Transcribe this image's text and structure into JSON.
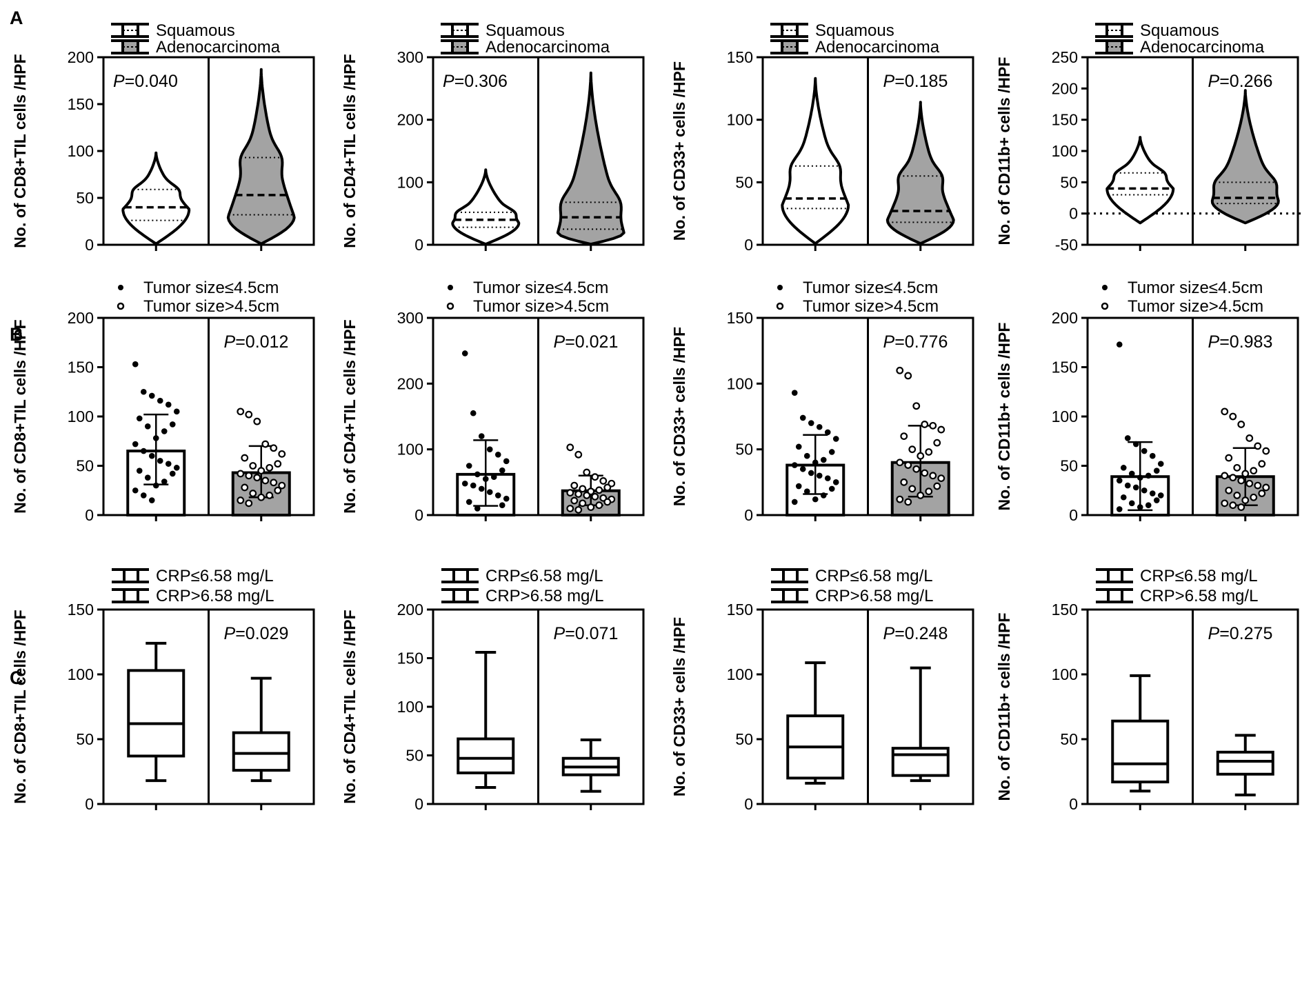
{
  "panels": [
    {
      "letter": "A",
      "chart_data": [
        {
          "type": "violin",
          "ylabel": "No. of CD8+TIL cells /HPF",
          "ylim": [
            0,
            200
          ],
          "yticks": [
            0,
            50,
            100,
            150,
            200
          ],
          "legend": [
            "Squamous",
            "Adenocarcinoma"
          ],
          "p_label": "P",
          "p_value": "=0.040",
          "p_position": "left",
          "groups": [
            {
              "name": "Squamous",
              "min": 1,
              "max": 98,
              "q1": 26,
              "median": 40,
              "q3": 59,
              "mode": 38
            },
            {
              "name": "Adenocarcinoma",
              "min": 1,
              "max": 187,
              "q1": 32,
              "median": 53,
              "q3": 93,
              "mode": 30
            }
          ]
        },
        {
          "type": "violin",
          "ylabel": "No. of CD4+TIL cells /HPF",
          "ylim": [
            0,
            300
          ],
          "yticks": [
            0,
            100,
            200,
            300
          ],
          "legend": [
            "Squamous",
            "Adenocarcinoma"
          ],
          "p_label": "P",
          "p_value": "=0.306",
          "p_position": "left",
          "groups": [
            {
              "name": "Squamous",
              "min": 1,
              "max": 120,
              "q1": 28,
              "median": 40,
              "q3": 52,
              "mode": 35
            },
            {
              "name": "Adenocarcinoma",
              "min": 1,
              "max": 275,
              "q1": 25,
              "median": 44,
              "q3": 68,
              "mode": 20
            }
          ]
        },
        {
          "type": "violin",
          "ylabel": "No. of CD33+ cells /HPF",
          "ylim": [
            0,
            150
          ],
          "yticks": [
            0,
            50,
            100,
            150
          ],
          "legend": [
            "Squamous",
            "Adenocarcinoma"
          ],
          "p_label": "P",
          "p_value": "=0.185",
          "p_position": "right",
          "groups": [
            {
              "name": "Squamous",
              "min": 1,
              "max": 133,
              "q1": 29,
              "median": 37,
              "q3": 63,
              "mode": 32
            },
            {
              "name": "Adenocarcinoma",
              "min": 1,
              "max": 114,
              "q1": 18,
              "median": 27,
              "q3": 55,
              "mode": 20
            }
          ]
        },
        {
          "type": "violin",
          "ylabel": "No. of CD11b+ cells /HPF",
          "ylim": [
            -50,
            250
          ],
          "yticks": [
            -50,
            0,
            50,
            100,
            150,
            200,
            250
          ],
          "legend": [
            "Squamous",
            "Adenocarcinoma"
          ],
          "p_label": "P",
          "p_value": "=0.266",
          "p_position": "right",
          "zero_line": true,
          "groups": [
            {
              "name": "Squamous",
              "min": -15,
              "max": 122,
              "q1": 30,
              "median": 40,
              "q3": 65,
              "mode": 40
            },
            {
              "name": "Adenocarcinoma",
              "min": -15,
              "max": 197,
              "q1": 16,
              "median": 25,
              "q3": 50,
              "mode": 20
            }
          ]
        }
      ]
    },
    {
      "letter": "B",
      "chart_data": [
        {
          "type": "bar_scatter",
          "ylabel": "No. of CD8+TIL cells /HPF",
          "ylim": [
            0,
            200
          ],
          "yticks": [
            0,
            50,
            100,
            150,
            200
          ],
          "legend": [
            "Tumor size≤4.5cm",
            "Tumor size>4.5cm"
          ],
          "p_label": "P",
          "p_value": "=0.012",
          "p_position": "right",
          "groups": [
            {
              "name": "Tumor size≤4.5cm",
              "mean": 65,
              "sd_low": 31,
              "sd_high": 102,
              "points": [
                153,
                125,
                121,
                116,
                112,
                105,
                98,
                92,
                90,
                85,
                78,
                72,
                65,
                60,
                55,
                52,
                48,
                45,
                42,
                38,
                34,
                30,
                25,
                20,
                15
              ]
            },
            {
              "name": "Tumor size>4.5cm",
              "mean": 43,
              "sd_low": 18,
              "sd_high": 70,
              "points": [
                105,
                102,
                95,
                72,
                68,
                62,
                58,
                52,
                50,
                48,
                45,
                42,
                40,
                38,
                35,
                33,
                30,
                28,
                25,
                22,
                20,
                18,
                15,
                12
              ]
            }
          ]
        },
        {
          "type": "bar_scatter",
          "ylabel": "No. of CD4+TIL cells /HPF",
          "ylim": [
            0,
            300
          ],
          "yticks": [
            0,
            100,
            200,
            300
          ],
          "legend": [
            "Tumor size≤4.5cm",
            "Tumor size>4.5cm"
          ],
          "p_label": "P",
          "p_value": "=0.021",
          "p_position": "right",
          "groups": [
            {
              "name": "Tumor size≤4.5cm",
              "mean": 62,
              "sd_low": 14,
              "sd_high": 114,
              "points": [
                246,
                155,
                120,
                100,
                92,
                82,
                75,
                68,
                62,
                58,
                55,
                48,
                45,
                40,
                35,
                30,
                25,
                20,
                15,
                10
              ]
            },
            {
              "name": "Tumor size>4.5cm",
              "mean": 37,
              "sd_low": 15,
              "sd_high": 60,
              "points": [
                103,
                92,
                65,
                58,
                52,
                48,
                45,
                42,
                40,
                38,
                36,
                34,
                32,
                30,
                28,
                26,
                24,
                22,
                20,
                18,
                15,
                12,
                10,
                8
              ]
            }
          ]
        },
        {
          "type": "bar_scatter",
          "ylabel": "No. of CD33+ cells /HPF",
          "ylim": [
            0,
            150
          ],
          "yticks": [
            0,
            50,
            100,
            150
          ],
          "legend": [
            "Tumor size≤4.5cm",
            "Tumor size>4.5cm"
          ],
          "p_label": "P",
          "p_value": "=0.776",
          "p_position": "right",
          "groups": [
            {
              "name": "Tumor size≤4.5cm",
              "mean": 38,
              "sd_low": 16,
              "sd_high": 61,
              "points": [
                93,
                74,
                70,
                67,
                63,
                58,
                52,
                48,
                45,
                42,
                40,
                38,
                35,
                32,
                30,
                28,
                25,
                22,
                20,
                18,
                15,
                12,
                10
              ]
            },
            {
              "name": "Tumor size>4.5cm",
              "mean": 40,
              "sd_low": 14,
              "sd_high": 68,
              "points": [
                110,
                106,
                83,
                69,
                68,
                65,
                60,
                55,
                50,
                48,
                45,
                40,
                38,
                35,
                32,
                30,
                28,
                25,
                22,
                20,
                18,
                15,
                12,
                10
              ]
            }
          ]
        },
        {
          "type": "bar_scatter",
          "ylabel": "No. of CD11b+ cells /HPF",
          "ylim": [
            0,
            200
          ],
          "yticks": [
            0,
            50,
            100,
            150,
            200
          ],
          "legend": [
            "Tumor size≤4.5cm",
            "Tumor size>4.5cm"
          ],
          "p_label": "P",
          "p_value": "=0.983",
          "p_position": "right",
          "groups": [
            {
              "name": "Tumor size≤4.5cm",
              "mean": 39,
              "sd_low": 5,
              "sd_high": 74,
              "points": [
                173,
                78,
                72,
                65,
                60,
                52,
                48,
                45,
                42,
                40,
                38,
                35,
                30,
                28,
                25,
                22,
                20,
                18,
                15,
                12,
                10,
                8,
                6
              ]
            },
            {
              "name": "Tumor size>4.5cm",
              "mean": 39,
              "sd_low": 10,
              "sd_high": 68,
              "points": [
                105,
                100,
                92,
                78,
                70,
                65,
                58,
                52,
                48,
                45,
                42,
                40,
                38,
                35,
                32,
                30,
                28,
                25,
                22,
                20,
                18,
                15,
                12,
                10,
                8
              ]
            }
          ]
        }
      ]
    },
    {
      "letter": "C",
      "chart_data": [
        {
          "type": "box",
          "ylabel": "No. of CD8+TIL cells /HPF",
          "ylim": [
            0,
            150
          ],
          "yticks": [
            0,
            50,
            100,
            150
          ],
          "legend": [
            "CRP≤6.58 mg/L",
            "CRP>6.58  mg/L"
          ],
          "p_label": "P",
          "p_value": "=0.029",
          "p_position": "right",
          "groups": [
            {
              "name": "CRP≤6.58 mg/L",
              "min": 18,
              "q1": 37,
              "median": 62,
              "q3": 103,
              "max": 124
            },
            {
              "name": "CRP>6.58  mg/L",
              "min": 18,
              "q1": 26,
              "median": 39,
              "q3": 55,
              "max": 97
            }
          ]
        },
        {
          "type": "box",
          "ylabel": "No. of CD4+TIL cells /HPF",
          "ylim": [
            0,
            200
          ],
          "yticks": [
            0,
            50,
            100,
            150,
            200
          ],
          "legend": [
            "CRP≤6.58 mg/L",
            "CRP>6.58  mg/L"
          ],
          "p_label": "P",
          "p_value": "=0.071",
          "p_position": "right",
          "groups": [
            {
              "name": "CRP≤6.58 mg/L",
              "min": 17,
              "q1": 32,
              "median": 47,
              "q3": 67,
              "max": 156
            },
            {
              "name": "CRP>6.58  mg/L",
              "min": 13,
              "q1": 30,
              "median": 38,
              "q3": 47,
              "max": 66
            }
          ]
        },
        {
          "type": "box",
          "ylabel": "No. of CD33+ cells /HPF",
          "ylim": [
            0,
            150
          ],
          "yticks": [
            0,
            50,
            100,
            150
          ],
          "legend": [
            "CRP≤6.58 mg/L",
            "CRP>6.58  mg/L"
          ],
          "p_label": "P",
          "p_value": "=0.248",
          "p_position": "right",
          "groups": [
            {
              "name": "CRP≤6.58 mg/L",
              "min": 16,
              "q1": 20,
              "median": 44,
              "q3": 68,
              "max": 109
            },
            {
              "name": "CRP>6.58  mg/L",
              "min": 18,
              "q1": 22,
              "median": 38,
              "q3": 43,
              "max": 105
            }
          ]
        },
        {
          "type": "box",
          "ylabel": "No. of CD11b+ cells /HPF",
          "ylim": [
            0,
            150
          ],
          "yticks": [
            0,
            50,
            100,
            150
          ],
          "legend": [
            "CRP≤6.58 mg/L",
            "CRP>6.58  mg/L"
          ],
          "p_label": "P",
          "p_value": "=0.275",
          "p_position": "right",
          "groups": [
            {
              "name": "CRP≤6.58 mg/L",
              "min": 10,
              "q1": 17,
              "median": 31,
              "q3": 64,
              "max": 99
            },
            {
              "name": "CRP>6.58  mg/L",
              "min": 7,
              "q1": 23,
              "median": 33,
              "q3": 40,
              "max": 53
            }
          ]
        }
      ]
    }
  ]
}
